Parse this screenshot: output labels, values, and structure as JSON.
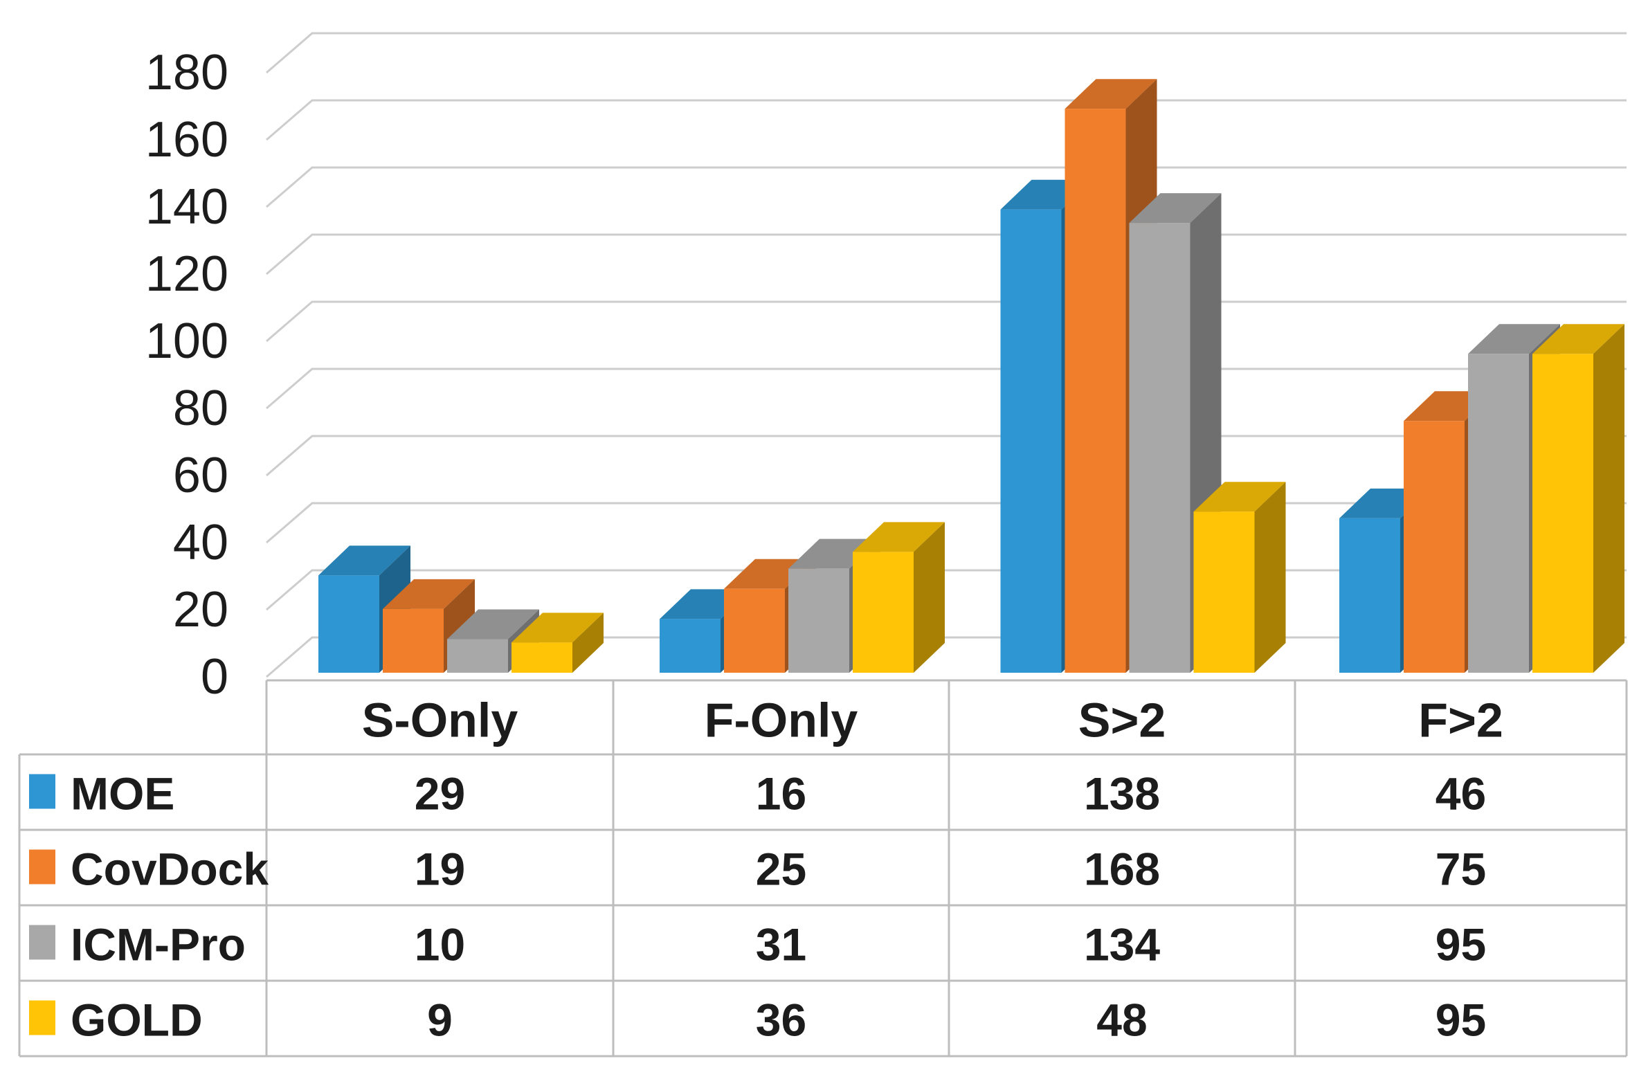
{
  "chart_data": {
    "type": "bar",
    "style": "3d-clustered-column",
    "title": "",
    "xlabel": "",
    "ylabel": "",
    "categories": [
      "S-Only",
      "F-Only",
      "S>2",
      "F>2"
    ],
    "series": [
      {
        "name": "MOE",
        "color": "#2E96D3",
        "values": [
          29,
          16,
          138,
          46
        ]
      },
      {
        "name": "CovDock",
        "color": "#F17E2B",
        "values": [
          19,
          25,
          168,
          75
        ]
      },
      {
        "name": "ICM-Pro",
        "color": "#A8A8A8",
        "values": [
          10,
          31,
          134,
          95
        ]
      },
      {
        "name": "GOLD",
        "color": "#FFC406",
        "values": [
          9,
          36,
          48,
          95
        ]
      }
    ],
    "y_axis": {
      "min": 0,
      "max": 180,
      "tick_step": 20,
      "tick_labels": [
        "0",
        "20",
        "40",
        "60",
        "80",
        "100",
        "120",
        "140",
        "160",
        "180"
      ]
    },
    "grid": true,
    "legend_position": "data-table-left-column",
    "data_table_shown": true
  },
  "theme": {
    "background": "#FFFFFF",
    "grid_color": "#CDCDCD",
    "axis_line_color": "#BDBDBD",
    "table_border_color": "#BDBDBD",
    "text_color": "#1C1C1C",
    "top_face_shade": 0.86,
    "side_face_shade": 0.66
  }
}
